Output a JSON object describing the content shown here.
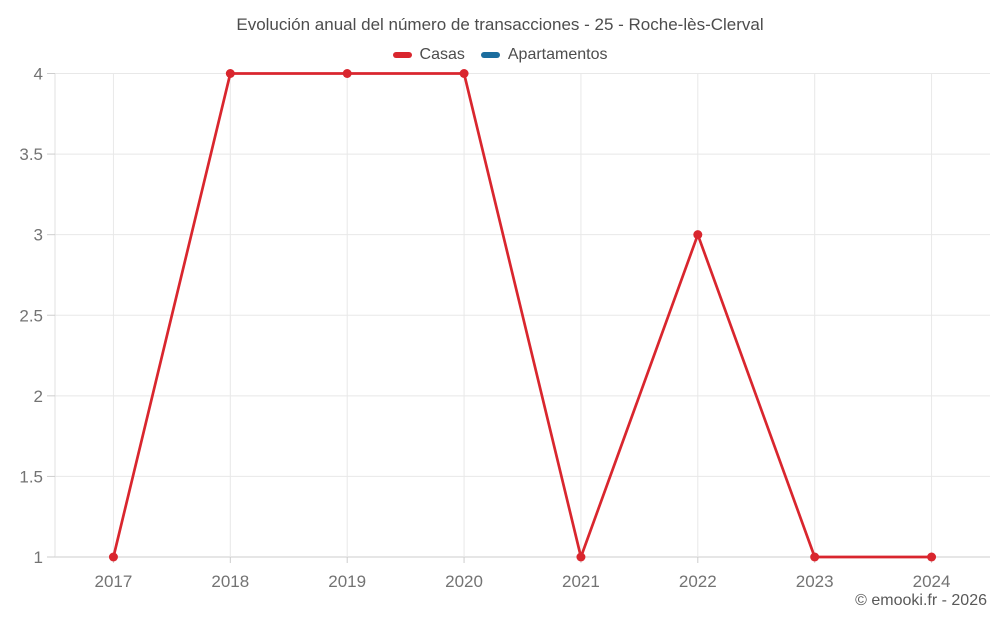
{
  "title": "Evolución anual del número de transacciones - 25 - Roche-lès-Clerval",
  "footer": {
    "copyright": "© emooki.fr - 2026"
  },
  "chart_data": {
    "type": "line",
    "title": "Evolución anual del número de transacciones - 25 - Roche-lès-Clerval",
    "categories": [
      "2017",
      "2018",
      "2019",
      "2020",
      "2021",
      "2022",
      "2023",
      "2024"
    ],
    "series": [
      {
        "name": "Casas",
        "color": "#d9262e",
        "values": [
          1,
          4,
          4,
          4,
          1,
          3,
          1,
          1
        ]
      },
      {
        "name": "Apartamentos",
        "color": "#1b6d9e",
        "values": []
      }
    ],
    "xlabel": "",
    "ylabel": "",
    "ylim": [
      1,
      4
    ],
    "yticks": [
      4,
      3.5,
      3,
      2.5,
      2,
      1.5,
      1
    ],
    "grid": true,
    "legend_position": "top",
    "grid_color": "#e8e8e8",
    "axis_color": "#cdcdcd"
  }
}
